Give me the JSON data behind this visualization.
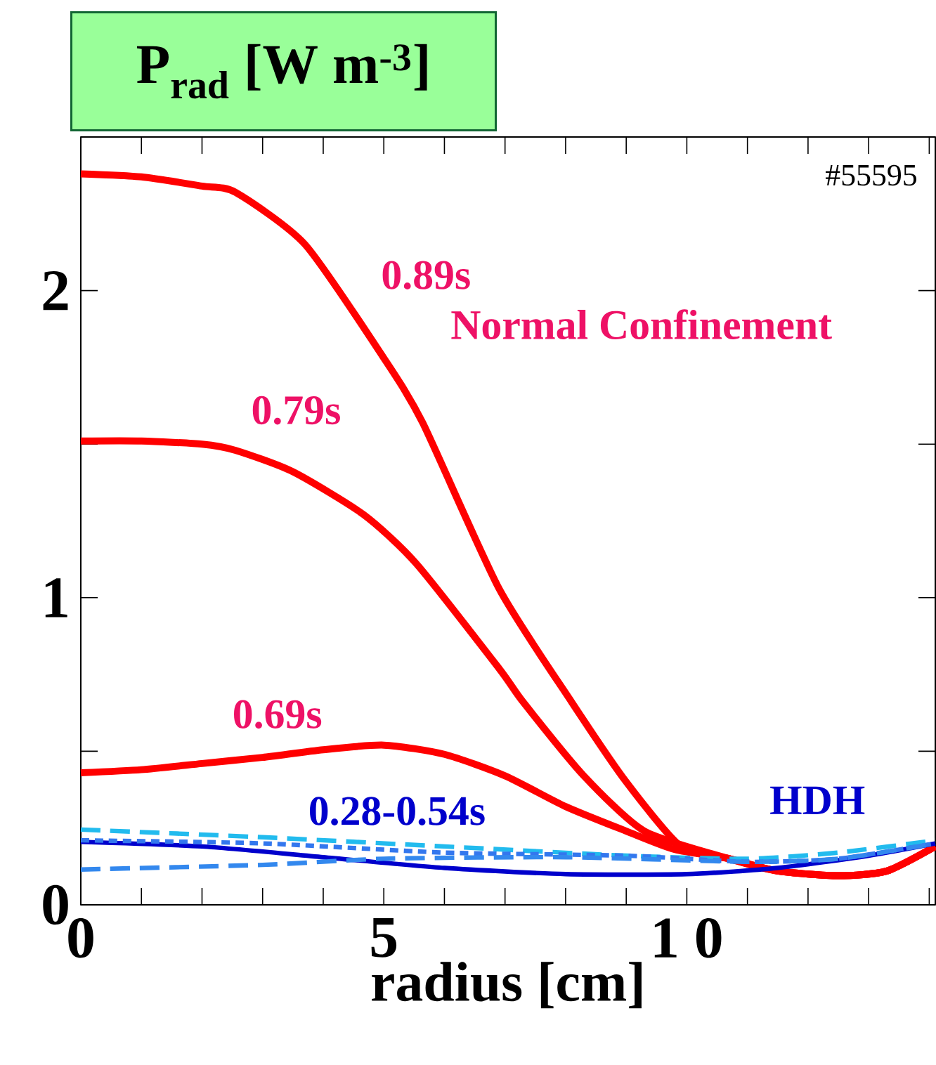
{
  "chart_data": {
    "type": "line",
    "ylabel": "P$_{rad}$ [W m$^{-3}$]",
    "xlabel": "radius  [cm]",
    "xlim": [
      0,
      14.1
    ],
    "ylim": [
      0,
      2.5
    ],
    "xticks": [
      0,
      {
        "value": 1,
        "label": null
      },
      {
        "value": 2,
        "label": null
      },
      {
        "value": 3,
        "label": null
      },
      {
        "value": 4,
        "label": null
      },
      5,
      {
        "value": 6,
        "label": null
      },
      {
        "value": 7,
        "label": null
      },
      {
        "value": 8,
        "label": null
      },
      {
        "value": 9,
        "label": null
      },
      {
        "value": 10,
        "label": "1 0"
      },
      {
        "value": 11,
        "label": null
      },
      {
        "value": 12,
        "label": null
      },
      {
        "value": 13,
        "label": null
      },
      {
        "value": 14,
        "label": null
      }
    ],
    "yticks": [
      0,
      {
        "value": 0.5,
        "label": null
      },
      1,
      {
        "value": 1.5,
        "label": null
      },
      2
    ],
    "grid": false,
    "marker": "none",
    "series": [
      {
        "color": "#ff0000",
        "line_style": "solid",
        "x": [
          0,
          1,
          2,
          2.55,
          3.7,
          5,
          5.64,
          6.9,
          8.1,
          9,
          9.9,
          10.7,
          11.5,
          12.5,
          13.3,
          14.1
        ],
        "values": [
          2.38,
          2.37,
          2.34,
          2.32,
          2.15,
          1.78,
          1.57,
          1.03,
          0.66,
          0.4,
          0.19,
          0.15,
          0.11,
          0.095,
          0.11,
          0.19
        ]
      },
      {
        "color": "#ff0000",
        "line_style": "solid",
        "x": [
          0,
          1,
          2,
          2.55,
          3.5,
          4.67,
          5.54,
          6.9,
          7.3,
          8.3,
          9.3,
          10.7,
          11.5,
          12.5,
          13.3,
          14.1
        ],
        "values": [
          1.51,
          1.51,
          1.5,
          1.48,
          1.41,
          1.27,
          1.11,
          0.77,
          0.66,
          0.42,
          0.24,
          0.15,
          0.11,
          0.095,
          0.11,
          0.19
        ]
      },
      {
        "color": "#ff0000",
        "line_style": "solid",
        "x": [
          0,
          1,
          2,
          3,
          4,
          5,
          6,
          7,
          8,
          9,
          9.8,
          10.7,
          11.5,
          12.5,
          13.3,
          14.1
        ],
        "values": [
          0.43,
          0.44,
          0.46,
          0.48,
          0.505,
          0.52,
          0.49,
          0.42,
          0.32,
          0.24,
          0.18,
          0.15,
          0.11,
          0.095,
          0.11,
          0.19
        ]
      },
      {
        "color": "#0000cc",
        "line_style": "solid",
        "x": [
          0,
          2,
          4,
          6,
          8,
          10,
          11.5,
          13,
          14.1
        ],
        "values": [
          0.205,
          0.19,
          0.155,
          0.12,
          0.1,
          0.1,
          0.12,
          0.16,
          0.2
        ]
      },
      {
        "color": "#22bbee",
        "line_style": "dashed",
        "x": [
          0,
          3,
          6,
          9,
          11,
          12.5,
          14.1
        ],
        "values": [
          0.245,
          0.22,
          0.19,
          0.16,
          0.15,
          0.17,
          0.21
        ]
      },
      {
        "color": "#3377ee",
        "line_style": "dotted",
        "x": [
          0,
          3,
          6,
          9,
          11,
          12.5,
          14.1
        ],
        "values": [
          0.21,
          0.2,
          0.17,
          0.16,
          0.14,
          0.15,
          0.2
        ]
      },
      {
        "color": "#3388ee",
        "line_style": "dashed",
        "x": [
          0,
          3,
          5,
          8,
          11,
          12.5,
          14.1
        ],
        "values": [
          0.115,
          0.13,
          0.15,
          0.155,
          0.14,
          0.15,
          0.2
        ]
      }
    ],
    "annotations": [
      "0.89s",
      "Normal Confinement",
      "0.79s",
      "0.69s",
      "0.28-0.54s",
      "HDH",
      "#55595"
    ]
  }
}
